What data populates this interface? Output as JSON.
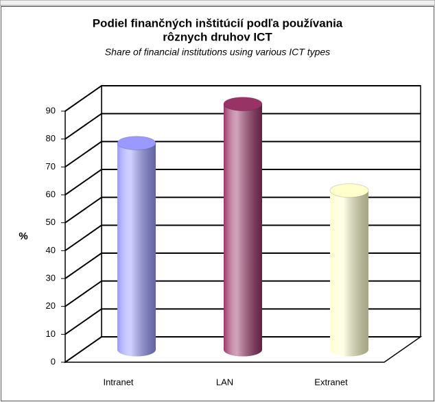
{
  "chart_data": {
    "type": "bar3d",
    "title": "Podiel finančných inštitúcií podľa používania",
    "title_line2": "rôznych druhov ICT",
    "subtitle": "Share of financial institutions using various ICT types",
    "y_label": "%",
    "categories": [
      "Intranet",
      "LAN",
      "Extranet"
    ],
    "values": [
      74,
      88,
      57
    ],
    "colors": [
      "#9999ff",
      "#993366",
      "#ffffcc"
    ],
    "ylim": [
      0,
      90
    ],
    "yticks": [
      0,
      10,
      20,
      30,
      40,
      50,
      60,
      70,
      80,
      90
    ],
    "grid": true
  }
}
